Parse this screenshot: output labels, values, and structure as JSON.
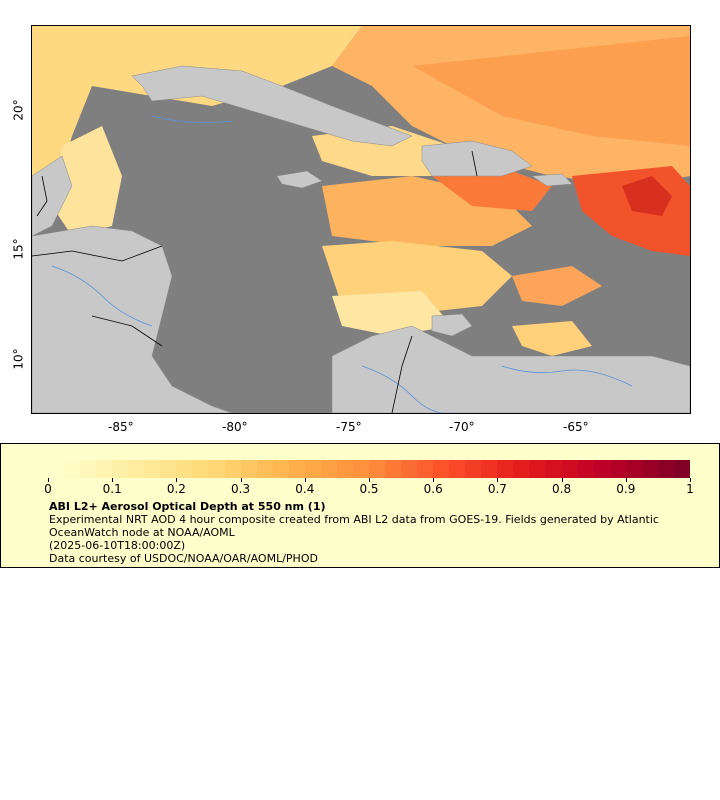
{
  "map": {
    "lat_labels": [
      "20°",
      "15°",
      "10°"
    ],
    "lon_labels": [
      "-85°",
      "-80°",
      "-75°",
      "-70°",
      "-65°"
    ],
    "colors": {
      "ocean_nodata": "#7f7f7f",
      "land": "#c8c8c8",
      "rivers": "#5b8fd6",
      "borders": "#000000"
    }
  },
  "legend": {
    "title": "ABI L2+ Aerosol Optical Depth at 550 nm (1)",
    "description": "Experimental NRT AOD 4 hour composite created from ABI L2 data from GOES-19. Fields generated by Atlantic OceanWatch node at NOAA/AOML",
    "timestamp": "(2025-06-10T18:00:00Z)",
    "credit": "Data courtesy of USDOC/NOAA/OAR/AOML/PHOD",
    "tick_labels": [
      "0",
      "0.1",
      "0.2",
      "0.3",
      "0.4",
      "0.5",
      "0.6",
      "0.7",
      "0.8",
      "0.9",
      "1"
    ],
    "colormap": [
      "#ffffcc",
      "#ffeda0",
      "#fed976",
      "#feb24c",
      "#fd8d3c",
      "#fc4e2a",
      "#e31a1c",
      "#bd0026",
      "#800026"
    ]
  }
}
